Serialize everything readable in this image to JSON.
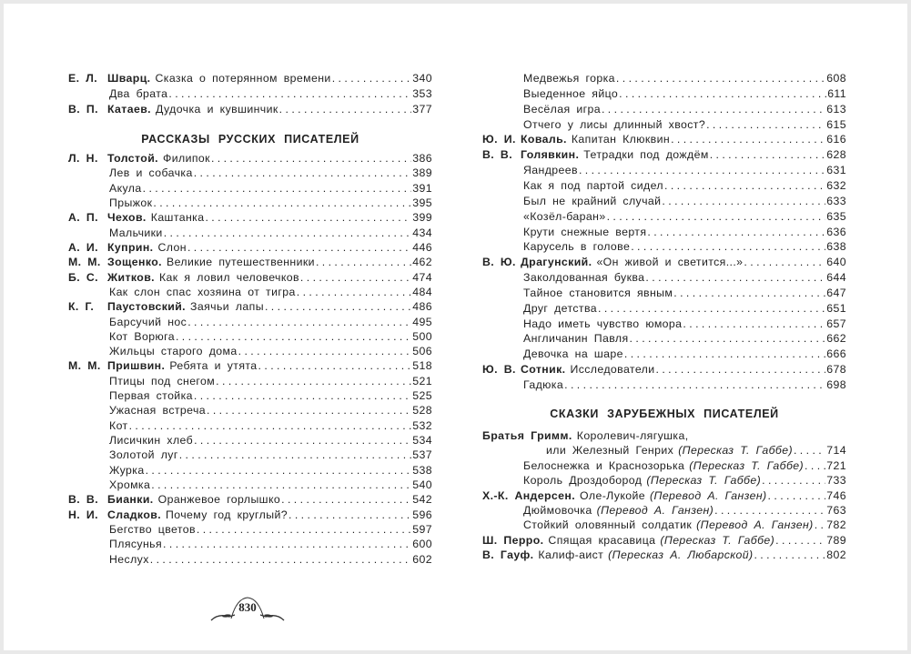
{
  "left": {
    "rows_top": [
      {
        "initials": "Е. Л.",
        "author": "Шварц.",
        "title": "Сказка о потерянном времени",
        "page": "340"
      },
      {
        "title": "Два брата",
        "page": "353"
      },
      {
        "initials": "В. П.",
        "author": "Катаев.",
        "title": "Дудочка и кувшинчик",
        "page": "377"
      }
    ],
    "heading": "РАССКАЗЫ РУССКИХ ПИСАТЕЛЕЙ",
    "rows": [
      {
        "initials": "Л. Н.",
        "author": "Толстой.",
        "title": "Филипок",
        "page": "386"
      },
      {
        "title": "Лев и собачка",
        "page": "389"
      },
      {
        "title": "Акула",
        "page": "391"
      },
      {
        "title": "Прыжок",
        "page": "395"
      },
      {
        "initials": "А. П.",
        "author": "Чехов.",
        "title": "Каштанка",
        "page": "399"
      },
      {
        "title": "Мальчики",
        "page": "434"
      },
      {
        "initials": "А. И.",
        "author": "Куприн.",
        "title": "Слон",
        "page": "446"
      },
      {
        "initials": "М. М.",
        "author": "Зощенко.",
        "title": "Великие путешественники",
        "page": "462"
      },
      {
        "initials": "Б. С.",
        "author": "Житков.",
        "title": "Как я ловил человечков",
        "page": "474"
      },
      {
        "title": "Как слон спас хозяина от тигра",
        "page": "484"
      },
      {
        "initials": "К. Г.",
        "author": "Паустовский.",
        "title": "Заячьи лапы",
        "page": "486"
      },
      {
        "title": "Барсучий нос",
        "page": "495"
      },
      {
        "title": "Кот Ворюга",
        "page": "500"
      },
      {
        "title": "Жильцы старого дома",
        "page": "506"
      },
      {
        "initials": "М. М.",
        "author": "Пришвин.",
        "title": "Ребята и утята",
        "page": "518"
      },
      {
        "title": "Птицы под снегом",
        "page": "521"
      },
      {
        "title": "Первая стойка",
        "page": "525"
      },
      {
        "title": "Ужасная встреча",
        "page": "528"
      },
      {
        "title": "Кот",
        "page": "532"
      },
      {
        "title": "Лисичкин хлеб",
        "page": "534"
      },
      {
        "title": "Золотой луг",
        "page": "537"
      },
      {
        "title": "Журка",
        "page": "538"
      },
      {
        "title": "Хромка",
        "page": "540"
      },
      {
        "initials": "В. В.",
        "author": "Бианки.",
        "title": "Оранжевое горлышко",
        "page": "542"
      },
      {
        "initials": "Н. И.",
        "author": "Сладков.",
        "title": "Почему год круглый?",
        "page": "596"
      },
      {
        "title": "Бегство цветов",
        "page": "597"
      },
      {
        "title": "Плясунья",
        "page": "600"
      },
      {
        "title": "Неслух",
        "page": "602"
      }
    ]
  },
  "right": {
    "rows_top": [
      {
        "title": "Медвежья горка",
        "page": "608"
      },
      {
        "title": "Выеденное яйцо",
        "page": "611"
      },
      {
        "title": "Весёлая игра",
        "page": "613"
      },
      {
        "title": "Отчего у лисы длинный хвост?",
        "page": "615"
      },
      {
        "initials": "Ю. И.",
        "author": "Коваль.",
        "title": "Капитан Клюквин",
        "page": "616"
      },
      {
        "initials": "В. В.",
        "author": "Голявкин.",
        "title": "Тетрадки под дождём",
        "page": "628"
      },
      {
        "title": "Яандреев",
        "page": "631"
      },
      {
        "title": "Как я под партой сидел",
        "page": "632"
      },
      {
        "title": "Был не крайний случай",
        "page": "633"
      },
      {
        "title": "«Козёл-баран»",
        "page": "635"
      },
      {
        "title": "Крути снежные вертя",
        "page": "636"
      },
      {
        "title": "Карусель в голове",
        "page": "638"
      },
      {
        "initials": "В. Ю.",
        "author": "Драгунский.",
        "title": "«Он живой и светится...»",
        "page": "640"
      },
      {
        "title": "Заколдованная буква",
        "page": "644"
      },
      {
        "title": "Тайное становится явным",
        "page": "647"
      },
      {
        "title": "Друг детства",
        "page": "651"
      },
      {
        "title": "Надо иметь чувство юмора",
        "page": "657"
      },
      {
        "title": "Англичанин Павля",
        "page": "662"
      },
      {
        "title": "Девочка на шаре",
        "page": "666"
      },
      {
        "initials": "Ю. В.",
        "author": "Сотник.",
        "title": "Исследователи",
        "page": "678"
      },
      {
        "title": "Гадюка",
        "page": "698"
      }
    ],
    "heading": "СКАЗКИ ЗАРУБЕЖНЫХ ПИСАТЕЛЕЙ",
    "rows": [
      {
        "author": "Братья Гримм.",
        "title": "Королевич-лягушка,",
        "nolead": true
      },
      {
        "title": "или Железный Генрих",
        "translator": "(Пересказ Т. Габбе)",
        "page": "714",
        "deep": true
      },
      {
        "title": "Белоснежка и Краснозорька",
        "translator": "(Пересказ Т. Габбе)",
        "page": "721"
      },
      {
        "title": "Король Дроздобород",
        "translator": "(Пересказ Т. Габбе)",
        "page": "733"
      },
      {
        "author": "Х.-К. Андерсен.",
        "title": "Оле-Лукойе",
        "translator": "(Перевод А. Ганзен)",
        "page": "746"
      },
      {
        "title": "Дюймовочка",
        "translator": "(Перевод А. Ганзен)",
        "page": "763"
      },
      {
        "title": "Стойкий оловянный солдатик",
        "translator": "(Перевод А. Ганзен)",
        "page": "782"
      },
      {
        "author": "Ш. Перро.",
        "title": "Спящая красавица",
        "translator": "(Пересказ Т. Габбе)",
        "page": "789"
      },
      {
        "author": "В. Гауф.",
        "title": "Калиф-аист",
        "translator": "(Пересказ А. Любарской)",
        "page": "802"
      }
    ]
  },
  "footer": {
    "page_number": "830"
  }
}
